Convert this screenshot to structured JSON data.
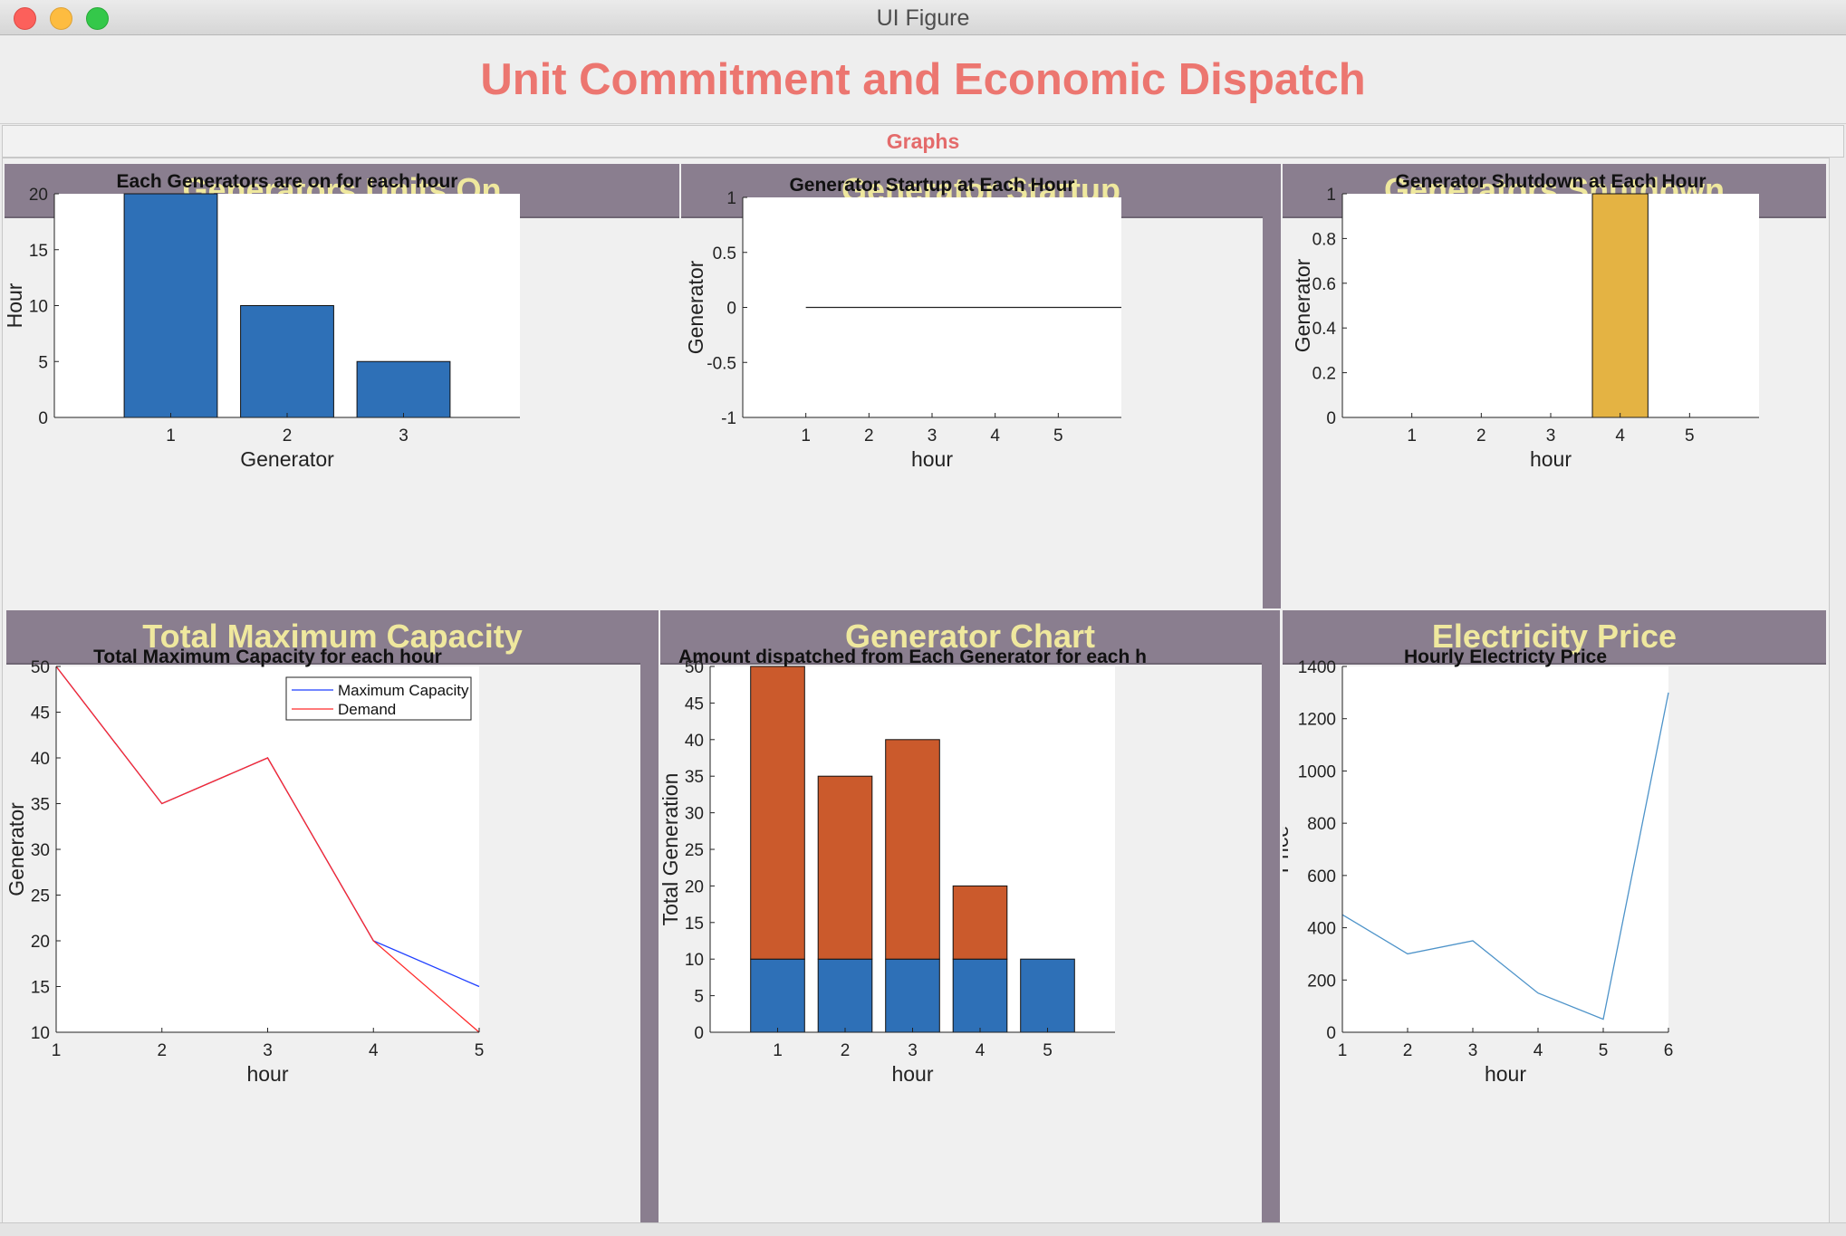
{
  "window": {
    "title": "UI Figure"
  },
  "app": {
    "title": "Unit Commitment and Economic Dispatch"
  },
  "tabs": [
    {
      "label": "Graphs"
    }
  ],
  "panels": [
    {
      "title": "Generators Units On"
    },
    {
      "title": "Generator Startup"
    },
    {
      "title": "Generators Shutdown"
    },
    {
      "title": "Total Maximum Capacity"
    },
    {
      "title": "Generator Chart"
    },
    {
      "title": "Electricity Price"
    }
  ],
  "colors": {
    "blue": "#2e70b7",
    "orange": "#cb5a2c",
    "yellow": "#e4b343",
    "line_blue": "#1f3fff",
    "line_red": "#ff2a2a",
    "price": "#4d93c9",
    "panel_header": "#8a7e8f",
    "panel_title_text": "#efe89e",
    "app_title": "#ec7670"
  },
  "chart_data": [
    {
      "type": "bar",
      "title": "Each Generators are on for each hour",
      "xlabel": "Generator",
      "ylabel": "Hour",
      "categories": [
        1,
        2,
        3
      ],
      "values": [
        20,
        10,
        5
      ],
      "xlim": [
        0,
        4
      ],
      "ylim": [
        0,
        20
      ],
      "xticks": [
        1,
        2,
        3
      ],
      "yticks": [
        0,
        5,
        10,
        15,
        20
      ]
    },
    {
      "type": "line",
      "title": "Generator Startup at Each Hour",
      "xlabel": "hour",
      "ylabel": "Generator",
      "x": [
        1,
        2,
        3,
        4,
        5,
        6
      ],
      "y": [
        0,
        0,
        0,
        0,
        0,
        0
      ],
      "xlim": [
        0,
        6
      ],
      "ylim": [
        -1,
        1
      ],
      "xticks": [
        1,
        2,
        3,
        4,
        5
      ],
      "yticks": [
        -1,
        -0.5,
        0,
        0.5,
        1
      ]
    },
    {
      "type": "bar",
      "title": "Generator Shutdown at Each Hour",
      "xlabel": "hour",
      "ylabel": "Generator",
      "categories": [
        4
      ],
      "values": [
        1
      ],
      "xlim": [
        0,
        6
      ],
      "ylim": [
        0,
        1
      ],
      "xticks": [
        1,
        2,
        3,
        4,
        5
      ],
      "yticks": [
        0,
        0.2,
        0.4,
        0.6,
        0.8,
        1
      ]
    },
    {
      "type": "line",
      "title": "Total Maximum Capacity for each hour",
      "xlabel": "hour",
      "ylabel": "Generator",
      "x": [
        1,
        2,
        3,
        4,
        5
      ],
      "series": [
        {
          "name": "Maximum Capacity",
          "values": [
            50,
            35,
            40,
            20,
            15
          ]
        },
        {
          "name": "Demand",
          "values": [
            50,
            35,
            40,
            20,
            10
          ]
        }
      ],
      "xlim": [
        1,
        5
      ],
      "ylim": [
        10,
        50
      ],
      "xticks": [
        1,
        2,
        3,
        4,
        5
      ],
      "yticks": [
        10,
        15,
        20,
        25,
        30,
        35,
        40,
        45,
        50
      ],
      "legend": "top-right"
    },
    {
      "type": "bar",
      "stacked": true,
      "title": "Amount dispatched from Each Generator for each h",
      "xlabel": "hour",
      "ylabel": "Total Generation",
      "categories": [
        1,
        2,
        3,
        4,
        5
      ],
      "series": [
        {
          "values": [
            10,
            10,
            10,
            10,
            10
          ]
        },
        {
          "values": [
            40,
            25,
            30,
            10,
            0
          ]
        }
      ],
      "xlim": [
        0,
        6
      ],
      "ylim": [
        0,
        50
      ],
      "xticks": [
        1,
        2,
        3,
        4,
        5
      ],
      "yticks": [
        0,
        5,
        10,
        15,
        20,
        25,
        30,
        35,
        40,
        45,
        50
      ]
    },
    {
      "type": "line",
      "title": "Hourly Electricty Price",
      "xlabel": "hour",
      "ylabel": "Price",
      "x": [
        1,
        2,
        3,
        4,
        5,
        6
      ],
      "y": [
        450,
        300,
        350,
        150,
        50,
        1300
      ],
      "xlim": [
        1,
        6
      ],
      "ylim": [
        0,
        1400
      ],
      "xticks": [
        1,
        2,
        3,
        4,
        5,
        6
      ],
      "yticks": [
        0,
        200,
        400,
        600,
        800,
        1000,
        1200,
        1400
      ]
    }
  ]
}
